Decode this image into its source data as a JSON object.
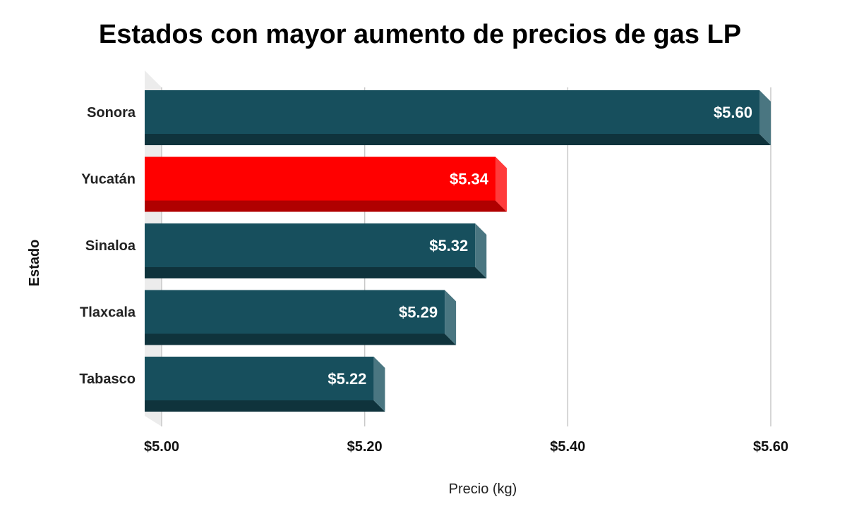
{
  "chart_data": {
    "type": "bar",
    "orientation": "horizontal",
    "title": "Estados con mayor aumento de precios de gas LP",
    "xlabel": "Precio (kg)",
    "ylabel": "Estado",
    "categories": [
      "Sonora",
      "Yucatán",
      "Sinaloa",
      "Tlaxcala",
      "Tabasco"
    ],
    "values": [
      5.6,
      5.34,
      5.32,
      5.29,
      5.22
    ],
    "data_labels": [
      "$5.60",
      "$5.34",
      "$5.32",
      "$5.29",
      "$5.22"
    ],
    "xlim": [
      5.0,
      5.6
    ],
    "x_ticks": [
      5.0,
      5.2,
      5.4,
      5.6
    ],
    "x_tick_labels": [
      "$5.00",
      "$5.20",
      "$5.40",
      "$5.60"
    ],
    "grid": true,
    "legend": "none",
    "bar_color": "#174f5d",
    "highlight_category": "Yucatán",
    "highlight_color": "#ff0000"
  }
}
